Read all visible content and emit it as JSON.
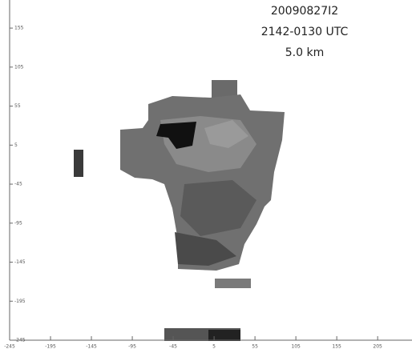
{
  "chart_data": {
    "type": "image",
    "annotations": [
      "20090827I2",
      "2142-0130 UTC",
      "5.0 km"
    ],
    "xlim": [
      -245,
      247
    ],
    "xticks": [
      -245,
      -195,
      -145,
      -95,
      -45,
      5,
      55,
      105,
      155,
      205
    ],
    "ylim": [
      -245,
      191
    ],
    "yticks": [
      -245,
      -195,
      -145,
      -95,
      -45,
      5,
      55,
      105,
      155
    ]
  }
}
